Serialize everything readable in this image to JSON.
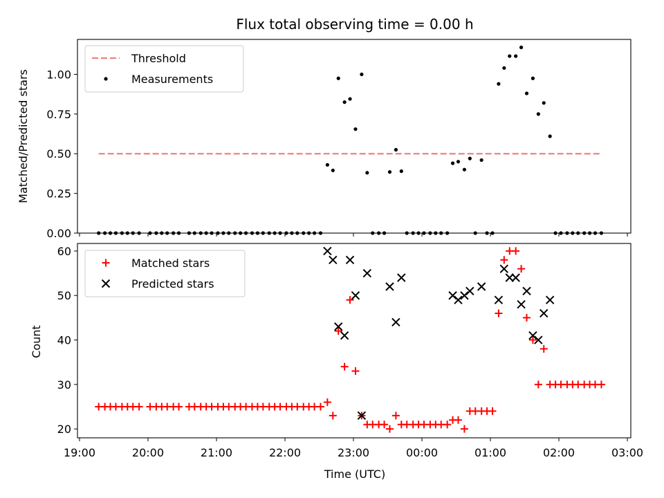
{
  "chart_data": [
    {
      "type": "scatter",
      "title": "Flux total observing time = 0.00 h",
      "xlabel": "",
      "ylabel": "Matched/Predicted stars",
      "ylim": [
        0,
        1.22
      ],
      "yticks": [
        "0.00",
        "0.25",
        "0.50",
        "0.75",
        "1.00"
      ],
      "ytick_values": [
        0,
        0.25,
        0.5,
        0.75,
        1.0
      ],
      "legend_position": "upper-left",
      "threshold": {
        "name": "Threshold",
        "value": 0.5,
        "x_start": 19.28,
        "x_end": 26.62,
        "color": "#f08080"
      },
      "series": [
        {
          "name": "Measurements",
          "color": "#000000",
          "marker": "dot",
          "points": [
            [
              19.28,
              0
            ],
            [
              19.37,
              0
            ],
            [
              19.45,
              0
            ],
            [
              19.53,
              0
            ],
            [
              19.62,
              0
            ],
            [
              19.7,
              0
            ],
            [
              19.78,
              0
            ],
            [
              19.87,
              0
            ],
            [
              20.03,
              0
            ],
            [
              20.12,
              0
            ],
            [
              20.2,
              0
            ],
            [
              20.28,
              0
            ],
            [
              20.37,
              0
            ],
            [
              20.45,
              0
            ],
            [
              20.6,
              0
            ],
            [
              20.68,
              0
            ],
            [
              20.77,
              0
            ],
            [
              20.85,
              0
            ],
            [
              20.93,
              0
            ],
            [
              21.02,
              0
            ],
            [
              21.1,
              0
            ],
            [
              21.18,
              0
            ],
            [
              21.27,
              0
            ],
            [
              21.35,
              0
            ],
            [
              21.43,
              0
            ],
            [
              21.52,
              0
            ],
            [
              21.6,
              0
            ],
            [
              21.68,
              0
            ],
            [
              21.77,
              0
            ],
            [
              21.85,
              0
            ],
            [
              21.93,
              0
            ],
            [
              22.02,
              0
            ],
            [
              22.1,
              0
            ],
            [
              22.18,
              0
            ],
            [
              22.27,
              0
            ],
            [
              22.35,
              0
            ],
            [
              22.43,
              0
            ],
            [
              22.52,
              0
            ],
            [
              22.62,
              0.43
            ],
            [
              22.7,
              0.395
            ],
            [
              22.78,
              0.975
            ],
            [
              22.87,
              0.825
            ],
            [
              22.95,
              0.845
            ],
            [
              23.03,
              0.655
            ],
            [
              23.12,
              1.0
            ],
            [
              23.2,
              0.38
            ],
            [
              23.28,
              0
            ],
            [
              23.37,
              0
            ],
            [
              23.45,
              0
            ],
            [
              23.53,
              0.385
            ],
            [
              23.62,
              0.525
            ],
            [
              23.7,
              0.39
            ],
            [
              23.78,
              0
            ],
            [
              23.87,
              0
            ],
            [
              23.95,
              0
            ],
            [
              24.03,
              0
            ],
            [
              24.12,
              0
            ],
            [
              24.2,
              0
            ],
            [
              24.28,
              0
            ],
            [
              24.37,
              0
            ],
            [
              24.45,
              0.44
            ],
            [
              24.53,
              0.45
            ],
            [
              24.62,
              0.4
            ],
            [
              24.7,
              0.47
            ],
            [
              24.78,
              0
            ],
            [
              24.87,
              0.46
            ],
            [
              24.95,
              0
            ],
            [
              25.03,
              0
            ],
            [
              25.12,
              0.94
            ],
            [
              25.2,
              1.04
            ],
            [
              25.28,
              1.115
            ],
            [
              25.37,
              1.115
            ],
            [
              25.45,
              1.17
            ],
            [
              25.53,
              0.88
            ],
            [
              25.62,
              0.975
            ],
            [
              25.7,
              0.75
            ],
            [
              25.78,
              0.82
            ],
            [
              25.87,
              0.61
            ],
            [
              25.95,
              0
            ],
            [
              26.03,
              0
            ],
            [
              26.12,
              0
            ],
            [
              26.2,
              0
            ],
            [
              26.28,
              0
            ],
            [
              26.37,
              0
            ],
            [
              26.45,
              0
            ],
            [
              26.53,
              0
            ],
            [
              26.62,
              0
            ]
          ]
        }
      ]
    },
    {
      "type": "scatter",
      "title": "",
      "xlabel": "Time (UTC)",
      "ylabel": "Count",
      "ylim": [
        18,
        61.7
      ],
      "yticks": [
        "20",
        "30",
        "40",
        "50",
        "60"
      ],
      "ytick_values": [
        20,
        30,
        40,
        50,
        60
      ],
      "xlim": [
        18.97,
        27.05
      ],
      "xticks": [
        "19:00",
        "20:00",
        "21:00",
        "22:00",
        "23:00",
        "00:00",
        "01:00",
        "02:00",
        "03:00"
      ],
      "xtick_values": [
        19,
        20,
        21,
        22,
        23,
        24,
        25,
        26,
        27
      ],
      "legend_position": "upper-left",
      "series": [
        {
          "name": "Matched stars",
          "color": "#ff0000",
          "marker": "plus",
          "points": [
            [
              19.28,
              25
            ],
            [
              19.37,
              25
            ],
            [
              19.45,
              25
            ],
            [
              19.53,
              25
            ],
            [
              19.62,
              25
            ],
            [
              19.7,
              25
            ],
            [
              19.78,
              25
            ],
            [
              19.87,
              25
            ],
            [
              20.03,
              25
            ],
            [
              20.12,
              25
            ],
            [
              20.2,
              25
            ],
            [
              20.28,
              25
            ],
            [
              20.37,
              25
            ],
            [
              20.45,
              25
            ],
            [
              20.6,
              25
            ],
            [
              20.68,
              25
            ],
            [
              20.77,
              25
            ],
            [
              20.85,
              25
            ],
            [
              20.93,
              25
            ],
            [
              21.02,
              25
            ],
            [
              21.1,
              25
            ],
            [
              21.18,
              25
            ],
            [
              21.27,
              25
            ],
            [
              21.35,
              25
            ],
            [
              21.43,
              25
            ],
            [
              21.52,
              25
            ],
            [
              21.6,
              25
            ],
            [
              21.68,
              25
            ],
            [
              21.77,
              25
            ],
            [
              21.85,
              25
            ],
            [
              21.93,
              25
            ],
            [
              22.02,
              25
            ],
            [
              22.1,
              25
            ],
            [
              22.18,
              25
            ],
            [
              22.27,
              25
            ],
            [
              22.35,
              25
            ],
            [
              22.43,
              25
            ],
            [
              22.52,
              25
            ],
            [
              22.62,
              26
            ],
            [
              22.7,
              23
            ],
            [
              22.78,
              42
            ],
            [
              22.87,
              34
            ],
            [
              22.95,
              49
            ],
            [
              23.03,
              33
            ],
            [
              23.12,
              23
            ],
            [
              23.2,
              21
            ],
            [
              23.28,
              21
            ],
            [
              23.37,
              21
            ],
            [
              23.45,
              21
            ],
            [
              23.53,
              20
            ],
            [
              23.62,
              23
            ],
            [
              23.7,
              21
            ],
            [
              23.78,
              21
            ],
            [
              23.87,
              21
            ],
            [
              23.95,
              21
            ],
            [
              24.03,
              21
            ],
            [
              24.12,
              21
            ],
            [
              24.2,
              21
            ],
            [
              24.28,
              21
            ],
            [
              24.37,
              21
            ],
            [
              24.45,
              22
            ],
            [
              24.53,
              22
            ],
            [
              24.62,
              20
            ],
            [
              24.7,
              24
            ],
            [
              24.78,
              24
            ],
            [
              24.87,
              24
            ],
            [
              24.95,
              24
            ],
            [
              25.03,
              24
            ],
            [
              25.12,
              46
            ],
            [
              25.2,
              58
            ],
            [
              25.28,
              60
            ],
            [
              25.37,
              60
            ],
            [
              25.45,
              56
            ],
            [
              25.53,
              45
            ],
            [
              25.62,
              40
            ],
            [
              25.7,
              30
            ],
            [
              25.78,
              38
            ],
            [
              25.87,
              30
            ],
            [
              25.95,
              30
            ],
            [
              26.03,
              30
            ],
            [
              26.12,
              30
            ],
            [
              26.2,
              30
            ],
            [
              26.28,
              30
            ],
            [
              26.37,
              30
            ],
            [
              26.45,
              30
            ],
            [
              26.53,
              30
            ],
            [
              26.62,
              30
            ]
          ]
        },
        {
          "name": "Predicted stars",
          "color": "#000000",
          "marker": "x",
          "points": [
            [
              22.62,
              60
            ],
            [
              22.7,
              58
            ],
            [
              22.78,
              43
            ],
            [
              22.87,
              41
            ],
            [
              22.95,
              58
            ],
            [
              23.03,
              50
            ],
            [
              23.12,
              23
            ],
            [
              23.2,
              55
            ],
            [
              23.53,
              52
            ],
            [
              23.62,
              44
            ],
            [
              23.7,
              54
            ],
            [
              24.45,
              50
            ],
            [
              24.53,
              49
            ],
            [
              24.62,
              50
            ],
            [
              24.7,
              51
            ],
            [
              24.87,
              52
            ],
            [
              25.12,
              49
            ],
            [
              25.2,
              56
            ],
            [
              25.28,
              54
            ],
            [
              25.37,
              54
            ],
            [
              25.45,
              48
            ],
            [
              25.53,
              51
            ],
            [
              25.62,
              41
            ],
            [
              25.7,
              40
            ],
            [
              25.78,
              46
            ],
            [
              25.87,
              49
            ]
          ]
        }
      ]
    }
  ]
}
